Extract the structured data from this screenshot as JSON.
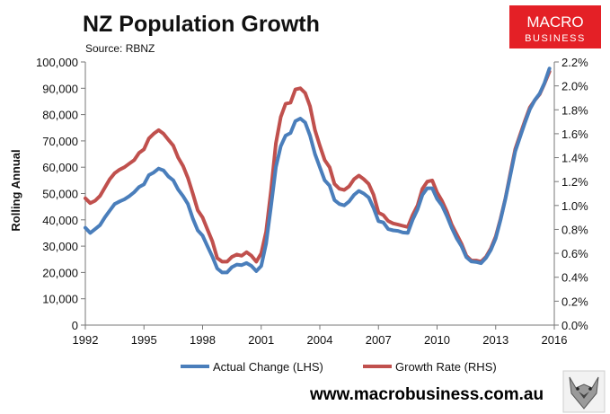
{
  "header": {
    "source": "Source: RBNZ"
  },
  "brand": {
    "logo_line1": "MACRO",
    "logo_line2": "BUSINESS",
    "logo_color": "#e42026",
    "website": "www.macrobusiness.com.au"
  },
  "chart_data": {
    "type": "line",
    "title": "NZ Population Growth",
    "ylabel": "Rolling Annual",
    "xlim": [
      1992,
      2016
    ],
    "ylim_left": [
      0,
      100000
    ],
    "ylim_right": [
      0,
      2.2
    ],
    "x_ticks": [
      "1992",
      "1995",
      "1998",
      "2001",
      "2004",
      "2007",
      "2010",
      "2013",
      "2016"
    ],
    "y_ticks_left": [
      "0",
      "10,000",
      "20,000",
      "30,000",
      "40,000",
      "50,000",
      "60,000",
      "70,000",
      "80,000",
      "90,000",
      "100,000"
    ],
    "y_ticks_right": [
      "0.0%",
      "0.2%",
      "0.4%",
      "0.6%",
      "0.8%",
      "1.0%",
      "1.2%",
      "1.4%",
      "1.6%",
      "1.8%",
      "2.0%",
      "2.2%"
    ],
    "series": [
      {
        "name": "Actual Change (LHS)",
        "axis": "left",
        "color": "#4a7ebb",
        "points": [
          [
            1992.0,
            37000
          ],
          [
            1992.25,
            35000
          ],
          [
            1992.5,
            36500
          ],
          [
            1992.75,
            38000
          ],
          [
            1993.0,
            41000
          ],
          [
            1993.25,
            43500
          ],
          [
            1993.5,
            46000
          ],
          [
            1993.75,
            47000
          ],
          [
            1994.0,
            47800
          ],
          [
            1994.25,
            49000
          ],
          [
            1994.5,
            50500
          ],
          [
            1994.75,
            52500
          ],
          [
            1995.0,
            53500
          ],
          [
            1995.25,
            57000
          ],
          [
            1995.5,
            58000
          ],
          [
            1995.75,
            59500
          ],
          [
            1996.0,
            58800
          ],
          [
            1996.25,
            56500
          ],
          [
            1996.5,
            55000
          ],
          [
            1996.75,
            51500
          ],
          [
            1997.0,
            49000
          ],
          [
            1997.25,
            46000
          ],
          [
            1997.5,
            40500
          ],
          [
            1997.75,
            36000
          ],
          [
            1998.0,
            34000
          ],
          [
            1998.25,
            30000
          ],
          [
            1998.5,
            26000
          ],
          [
            1998.75,
            21500
          ],
          [
            1999.0,
            20000
          ],
          [
            1999.25,
            20000
          ],
          [
            1999.5,
            22000
          ],
          [
            1999.75,
            23000
          ],
          [
            2000.0,
            22800
          ],
          [
            2000.25,
            23600
          ],
          [
            2000.5,
            22500
          ],
          [
            2000.75,
            20500
          ],
          [
            2001.0,
            22500
          ],
          [
            2001.25,
            31000
          ],
          [
            2001.5,
            45000
          ],
          [
            2001.75,
            60000
          ],
          [
            2002.0,
            68000
          ],
          [
            2002.25,
            72000
          ],
          [
            2002.5,
            73000
          ],
          [
            2002.75,
            77500
          ],
          [
            2003.0,
            78500
          ],
          [
            2003.25,
            77000
          ],
          [
            2003.5,
            72000
          ],
          [
            2003.75,
            65000
          ],
          [
            2004.0,
            60000
          ],
          [
            2004.25,
            55000
          ],
          [
            2004.5,
            53000
          ],
          [
            2004.75,
            47500
          ],
          [
            2005.0,
            46000
          ],
          [
            2005.25,
            45500
          ],
          [
            2005.5,
            47000
          ],
          [
            2005.75,
            49500
          ],
          [
            2006.0,
            51000
          ],
          [
            2006.25,
            50000
          ],
          [
            2006.5,
            48500
          ],
          [
            2006.75,
            44500
          ],
          [
            2007.0,
            39500
          ],
          [
            2007.25,
            39000
          ],
          [
            2007.5,
            36500
          ],
          [
            2007.75,
            36000
          ],
          [
            2008.0,
            35800
          ],
          [
            2008.25,
            35200
          ],
          [
            2008.5,
            35000
          ],
          [
            2008.75,
            40000
          ],
          [
            2009.0,
            44000
          ],
          [
            2009.25,
            49500
          ],
          [
            2009.5,
            52000
          ],
          [
            2009.75,
            52000
          ],
          [
            2010.0,
            48000
          ],
          [
            2010.25,
            45500
          ],
          [
            2010.5,
            41500
          ],
          [
            2010.75,
            37000
          ],
          [
            2011.0,
            33000
          ],
          [
            2011.25,
            30000
          ],
          [
            2011.5,
            25800
          ],
          [
            2011.75,
            24200
          ],
          [
            2012.0,
            24000
          ],
          [
            2012.25,
            23500
          ],
          [
            2012.5,
            25500
          ],
          [
            2012.75,
            28500
          ],
          [
            2013.0,
            33000
          ],
          [
            2013.25,
            40000
          ],
          [
            2013.5,
            48000
          ],
          [
            2013.75,
            57000
          ],
          [
            2014.0,
            66000
          ],
          [
            2014.25,
            71500
          ],
          [
            2014.5,
            77000
          ],
          [
            2014.75,
            82000
          ],
          [
            2015.0,
            85500
          ],
          [
            2015.25,
            88000
          ],
          [
            2015.5,
            92000
          ],
          [
            2015.75,
            97500
          ]
        ]
      },
      {
        "name": "Growth Rate (RHS)",
        "axis": "right",
        "color": "#c0504d",
        "points": [
          [
            1992.0,
            1.06
          ],
          [
            1992.25,
            1.02
          ],
          [
            1992.5,
            1.04
          ],
          [
            1992.75,
            1.08
          ],
          [
            1993.0,
            1.15
          ],
          [
            1993.25,
            1.22
          ],
          [
            1993.5,
            1.27
          ],
          [
            1993.75,
            1.3
          ],
          [
            1994.0,
            1.32
          ],
          [
            1994.25,
            1.35
          ],
          [
            1994.5,
            1.38
          ],
          [
            1994.75,
            1.44
          ],
          [
            1995.0,
            1.47
          ],
          [
            1995.25,
            1.56
          ],
          [
            1995.5,
            1.6
          ],
          [
            1995.75,
            1.63
          ],
          [
            1996.0,
            1.6
          ],
          [
            1996.25,
            1.55
          ],
          [
            1996.5,
            1.5
          ],
          [
            1996.75,
            1.4
          ],
          [
            1997.0,
            1.33
          ],
          [
            1997.25,
            1.23
          ],
          [
            1997.5,
            1.1
          ],
          [
            1997.75,
            0.96
          ],
          [
            1998.0,
            0.9
          ],
          [
            1998.25,
            0.8
          ],
          [
            1998.5,
            0.7
          ],
          [
            1998.75,
            0.56
          ],
          [
            1999.0,
            0.53
          ],
          [
            1999.25,
            0.53
          ],
          [
            1999.5,
            0.57
          ],
          [
            1999.75,
            0.59
          ],
          [
            2000.0,
            0.58
          ],
          [
            2000.25,
            0.61
          ],
          [
            2000.5,
            0.58
          ],
          [
            2000.75,
            0.53
          ],
          [
            2001.0,
            0.6
          ],
          [
            2001.25,
            0.78
          ],
          [
            2001.5,
            1.12
          ],
          [
            2001.75,
            1.52
          ],
          [
            2002.0,
            1.74
          ],
          [
            2002.25,
            1.85
          ],
          [
            2002.5,
            1.86
          ],
          [
            2002.75,
            1.97
          ],
          [
            2003.0,
            1.98
          ],
          [
            2003.25,
            1.94
          ],
          [
            2003.5,
            1.83
          ],
          [
            2003.75,
            1.63
          ],
          [
            2004.0,
            1.5
          ],
          [
            2004.25,
            1.38
          ],
          [
            2004.5,
            1.32
          ],
          [
            2004.75,
            1.18
          ],
          [
            2005.0,
            1.14
          ],
          [
            2005.25,
            1.13
          ],
          [
            2005.5,
            1.16
          ],
          [
            2005.75,
            1.22
          ],
          [
            2006.0,
            1.25
          ],
          [
            2006.25,
            1.22
          ],
          [
            2006.5,
            1.18
          ],
          [
            2006.75,
            1.09
          ],
          [
            2007.0,
            0.94
          ],
          [
            2007.25,
            0.92
          ],
          [
            2007.5,
            0.87
          ],
          [
            2007.75,
            0.85
          ],
          [
            2008.0,
            0.84
          ],
          [
            2008.25,
            0.83
          ],
          [
            2008.5,
            0.82
          ],
          [
            2008.75,
            0.92
          ],
          [
            2009.0,
            1.0
          ],
          [
            2009.25,
            1.14
          ],
          [
            2009.5,
            1.2
          ],
          [
            2009.75,
            1.21
          ],
          [
            2010.0,
            1.11
          ],
          [
            2010.25,
            1.04
          ],
          [
            2010.5,
            0.95
          ],
          [
            2010.75,
            0.84
          ],
          [
            2011.0,
            0.76
          ],
          [
            2011.25,
            0.68
          ],
          [
            2011.5,
            0.58
          ],
          [
            2011.75,
            0.54
          ],
          [
            2012.0,
            0.54
          ],
          [
            2012.25,
            0.53
          ],
          [
            2012.5,
            0.57
          ],
          [
            2012.75,
            0.64
          ],
          [
            2013.0,
            0.74
          ],
          [
            2013.25,
            0.89
          ],
          [
            2013.5,
            1.06
          ],
          [
            2013.75,
            1.27
          ],
          [
            2014.0,
            1.47
          ],
          [
            2014.25,
            1.59
          ],
          [
            2014.5,
            1.71
          ],
          [
            2014.75,
            1.82
          ],
          [
            2015.0,
            1.88
          ],
          [
            2015.25,
            1.93
          ],
          [
            2015.5,
            2.02
          ],
          [
            2015.75,
            2.12
          ]
        ]
      }
    ]
  }
}
